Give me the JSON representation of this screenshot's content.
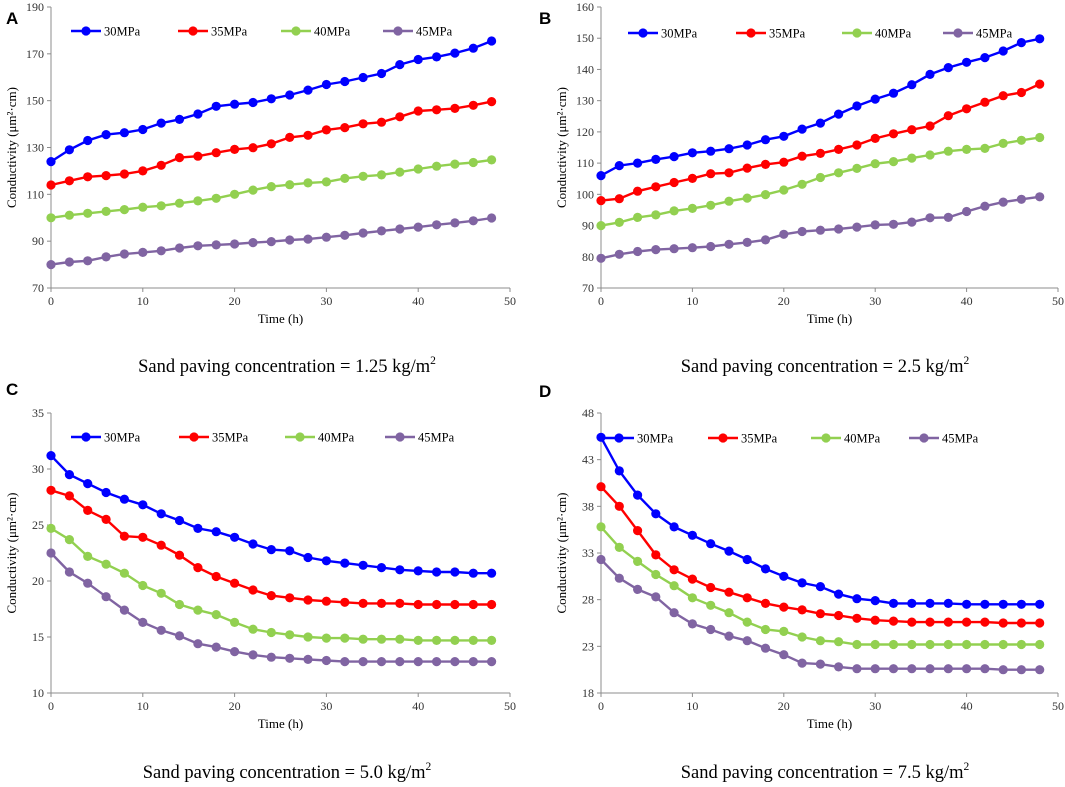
{
  "figure": {
    "series_names": [
      "30MPa",
      "35MPa",
      "40MPa",
      "45MPa"
    ],
    "series_colors": [
      "#0000ff",
      "#ff0000",
      "#92d050",
      "#8064a2"
    ],
    "caption_prefix": "Sand paving concentration = ",
    "caption_unit": "kg/m",
    "caption_sup": "2"
  },
  "chart_data": [
    {
      "panel": "A",
      "type": "line",
      "xlabel": "Time (h)",
      "ylabel": "Conductivity (μm²·cm)",
      "xlim": [
        0,
        50
      ],
      "ylim": [
        70,
        190
      ],
      "xticks": [
        0,
        10,
        20,
        30,
        40,
        50
      ],
      "yticks": [
        70,
        90,
        110,
        130,
        150,
        170,
        190
      ],
      "caption_value": "1.25",
      "x": [
        0,
        2,
        4,
        6,
        8,
        10,
        12,
        14,
        16,
        18,
        20,
        22,
        24,
        26,
        28,
        30,
        32,
        34,
        36,
        38,
        40,
        42,
        44,
        46,
        48
      ],
      "series": [
        {
          "name": "30MPa",
          "values": [
            124,
            129,
            133,
            135.5,
            136.3,
            137.7,
            140.4,
            142,
            144.3,
            147.6,
            148.5,
            149.2,
            150.8,
            152.4,
            154.5,
            156.9,
            158.2,
            159.9,
            161.6,
            165.4,
            167.6,
            168.7,
            170.3,
            172.4,
            175.5
          ]
        },
        {
          "name": "35MPa",
          "values": [
            114,
            115.8,
            117.5,
            118,
            118.7,
            120,
            122.4,
            125.7,
            126.3,
            127.8,
            129.2,
            129.9,
            131.6,
            134.3,
            135.2,
            137.5,
            138.5,
            140.1,
            140.8,
            143.1,
            145.6,
            146.1,
            146.7,
            148,
            149.6
          ]
        },
        {
          "name": "40MPa",
          "values": [
            100,
            101.1,
            101.9,
            102.7,
            103.5,
            104.5,
            105.1,
            106.2,
            107.2,
            108.3,
            110,
            111.8,
            113.3,
            114.1,
            114.9,
            115.3,
            116.8,
            117.7,
            118.3,
            119.5,
            120.8,
            122,
            122.9,
            123.6,
            124.7
          ]
        },
        {
          "name": "45MPa",
          "values": [
            80,
            81.1,
            81.6,
            83.3,
            84.5,
            85.2,
            85.9,
            87.1,
            88,
            88.4,
            88.8,
            89.4,
            89.8,
            90.5,
            90.9,
            91.7,
            92.5,
            93.5,
            94.4,
            95.2,
            96,
            97,
            97.8,
            98.7,
            99.9
          ]
        }
      ]
    },
    {
      "panel": "B",
      "type": "line",
      "xlabel": "Time (h)",
      "ylabel": "Conductivity (μm²·cm)",
      "xlim": [
        0,
        50
      ],
      "ylim": [
        70,
        160
      ],
      "xticks": [
        0,
        10,
        20,
        30,
        40,
        50
      ],
      "yticks": [
        70,
        80,
        90,
        100,
        110,
        120,
        130,
        140,
        150,
        160
      ],
      "caption_value": "2.5",
      "x": [
        0,
        2,
        4,
        6,
        8,
        10,
        12,
        14,
        16,
        18,
        20,
        22,
        24,
        26,
        28,
        30,
        32,
        34,
        36,
        38,
        40,
        42,
        44,
        46,
        48
      ],
      "series": [
        {
          "name": "30MPa",
          "values": [
            106,
            109.2,
            110,
            111.2,
            112.1,
            113.3,
            113.8,
            114.6,
            115.8,
            117.5,
            118.6,
            120.9,
            122.8,
            125.7,
            128.3,
            130.5,
            132.4,
            135.1,
            138.4,
            140.6,
            142.3,
            143.8,
            145.9,
            148.6,
            149.8
          ]
        },
        {
          "name": "35MPa",
          "values": [
            98,
            98.6,
            101,
            102.4,
            103.8,
            105.1,
            106.6,
            106.9,
            108.4,
            109.6,
            110.3,
            112.2,
            113.1,
            114.4,
            115.8,
            117.9,
            119.4,
            120.7,
            121.9,
            125.2,
            127.4,
            129.5,
            131.6,
            132.6,
            135.3
          ]
        },
        {
          "name": "40MPa",
          "values": [
            90,
            91,
            92.6,
            93.4,
            94.7,
            95.5,
            96.5,
            97.8,
            98.8,
            99.9,
            101.4,
            103.2,
            105.4,
            106.9,
            108.3,
            109.8,
            110.5,
            111.6,
            112.6,
            113.8,
            114.4,
            114.7,
            116.3,
            117.3,
            118.2
          ]
        },
        {
          "name": "45MPa",
          "values": [
            79.5,
            80.8,
            81.7,
            82.3,
            82.6,
            82.9,
            83.3,
            84,
            84.6,
            85.4,
            87.2,
            88.1,
            88.5,
            88.9,
            89.5,
            90.2,
            90.4,
            91.1,
            92.5,
            92.6,
            94.5,
            96.2,
            97.5,
            98.4,
            99.2
          ]
        }
      ]
    },
    {
      "panel": "C",
      "type": "line",
      "xlabel": "Time (h)",
      "ylabel": "Conductivity (μm²·cm)",
      "xlim": [
        0,
        50
      ],
      "ylim": [
        10,
        35
      ],
      "xticks": [
        0,
        10,
        20,
        30,
        40,
        50
      ],
      "yticks": [
        10,
        15,
        20,
        25,
        30,
        35
      ],
      "caption_value": "5.0",
      "x": [
        0,
        2,
        4,
        6,
        8,
        10,
        12,
        14,
        16,
        18,
        20,
        22,
        24,
        26,
        28,
        30,
        32,
        34,
        36,
        38,
        40,
        42,
        44,
        46,
        48
      ],
      "series": [
        {
          "name": "30MPa",
          "values": [
            31.2,
            29.5,
            28.7,
            27.9,
            27.3,
            26.8,
            26,
            25.4,
            24.7,
            24.4,
            23.9,
            23.3,
            22.8,
            22.7,
            22.1,
            21.8,
            21.6,
            21.4,
            21.2,
            21,
            20.9,
            20.8,
            20.8,
            20.7,
            20.7
          ]
        },
        {
          "name": "35MPa",
          "values": [
            28.1,
            27.6,
            26.3,
            25.5,
            24,
            23.9,
            23.2,
            22.3,
            21.2,
            20.4,
            19.8,
            19.2,
            18.7,
            18.5,
            18.3,
            18.2,
            18.1,
            18,
            18,
            18,
            17.9,
            17.9,
            17.9,
            17.9,
            17.9
          ]
        },
        {
          "name": "40MPa",
          "values": [
            24.7,
            23.7,
            22.2,
            21.5,
            20.7,
            19.6,
            18.9,
            17.9,
            17.4,
            17,
            16.3,
            15.7,
            15.4,
            15.2,
            15,
            14.9,
            14.9,
            14.8,
            14.8,
            14.8,
            14.7,
            14.7,
            14.7,
            14.7,
            14.7
          ]
        },
        {
          "name": "45MPa",
          "values": [
            22.5,
            20.8,
            19.8,
            18.6,
            17.4,
            16.3,
            15.6,
            15.1,
            14.4,
            14.1,
            13.7,
            13.4,
            13.2,
            13.1,
            13,
            12.9,
            12.8,
            12.8,
            12.8,
            12.8,
            12.8,
            12.8,
            12.8,
            12.8,
            12.8
          ]
        }
      ]
    },
    {
      "panel": "D",
      "type": "line",
      "xlabel": "Time (h)",
      "ylabel": "Conductivity (μm²·cm)",
      "xlim": [
        0,
        50
      ],
      "ylim": [
        18,
        48
      ],
      "xticks": [
        0,
        10,
        20,
        30,
        40,
        50
      ],
      "yticks": [
        18,
        23,
        28,
        33,
        38,
        43,
        48
      ],
      "caption_value": "7.5",
      "x": [
        0,
        2,
        4,
        6,
        8,
        10,
        12,
        14,
        16,
        18,
        20,
        22,
        24,
        26,
        28,
        30,
        32,
        34,
        36,
        38,
        40,
        42,
        44,
        46,
        48
      ],
      "series": [
        {
          "name": "30MPa",
          "values": [
            45.4,
            41.8,
            39.2,
            37.2,
            35.8,
            34.9,
            34,
            33.2,
            32.3,
            31.3,
            30.5,
            29.8,
            29.4,
            28.6,
            28.1,
            27.9,
            27.6,
            27.6,
            27.6,
            27.6,
            27.5,
            27.5,
            27.5,
            27.5,
            27.5
          ]
        },
        {
          "name": "35MPa",
          "values": [
            40.1,
            38,
            35.4,
            32.8,
            31.2,
            30.2,
            29.3,
            28.8,
            28.2,
            27.6,
            27.2,
            26.9,
            26.5,
            26.3,
            26,
            25.8,
            25.7,
            25.6,
            25.6,
            25.6,
            25.6,
            25.6,
            25.5,
            25.5,
            25.5
          ]
        },
        {
          "name": "45MPa",
          "values": [
            32.3,
            30.3,
            29.1,
            28.3,
            26.6,
            25.4,
            24.8,
            24.1,
            23.6,
            22.8,
            22.1,
            21.2,
            21.1,
            20.8,
            20.6,
            20.6,
            20.6,
            20.6,
            20.6,
            20.6,
            20.6,
            20.6,
            20.5,
            20.5,
            20.5
          ]
        },
        {
          "name": "40MPa",
          "values": [
            35.8,
            33.6,
            32.1,
            30.7,
            29.5,
            28.2,
            27.4,
            26.6,
            25.6,
            24.8,
            24.6,
            24,
            23.6,
            23.5,
            23.2,
            23.2,
            23.2,
            23.2,
            23.2,
            23.2,
            23.2,
            23.2,
            23.2,
            23.2,
            23.2
          ]
        }
      ]
    }
  ]
}
